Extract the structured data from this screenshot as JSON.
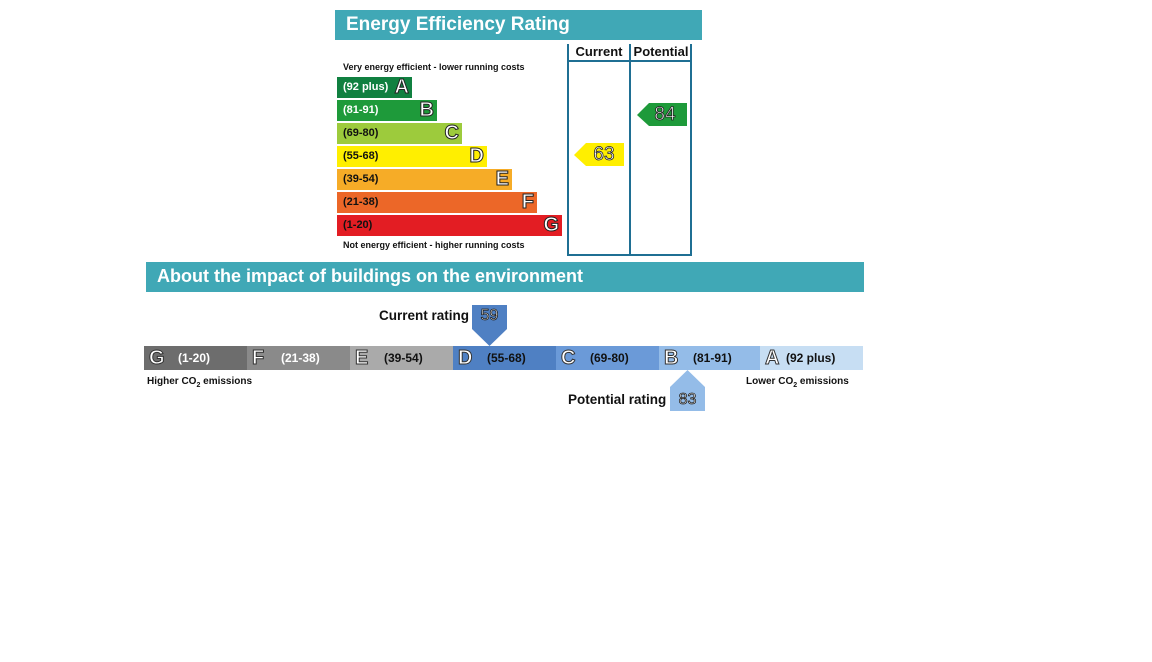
{
  "eer": {
    "title": "Energy Efficiency Rating",
    "columns": {
      "current": "Current",
      "potential": "Potential"
    },
    "top_caption": "Very energy efficient - lower running costs",
    "bottom_caption": "Not energy efficient - higher running costs",
    "bands": [
      {
        "letter": "A",
        "range": "(92 plus)",
        "color": "#108040"
      },
      {
        "letter": "B",
        "range": "(81-91)",
        "color": "#1e9a3a"
      },
      {
        "letter": "C",
        "range": "(69-80)",
        "color": "#9dcb3c"
      },
      {
        "letter": "D",
        "range": "(55-68)",
        "color": "#ffef00"
      },
      {
        "letter": "E",
        "range": "(39-54)",
        "color": "#f6ac27"
      },
      {
        "letter": "F",
        "range": "(21-38)",
        "color": "#ec6728"
      },
      {
        "letter": "G",
        "range": "(1-20)",
        "color": "#e31d23"
      }
    ],
    "current": {
      "value": "63",
      "band": "D",
      "color": "#ffef00"
    },
    "potential": {
      "value": "84",
      "band": "B",
      "color": "#1e9a3a"
    }
  },
  "env": {
    "title": "About the impact of buildings on the environment",
    "bands": [
      {
        "letter": "G",
        "range": "(1-20)",
        "color": "#6d6d6d"
      },
      {
        "letter": "F",
        "range": "(21-38)",
        "color": "#8a8a8a"
      },
      {
        "letter": "E",
        "range": "(39-54)",
        "color": "#aaaaaa"
      },
      {
        "letter": "D",
        "range": "(55-68)",
        "color": "#4f80c3"
      },
      {
        "letter": "C",
        "range": "(69-80)",
        "color": "#6b9ad8"
      },
      {
        "letter": "B",
        "range": "(81-91)",
        "color": "#94bce8"
      },
      {
        "letter": "A",
        "range": "(92 plus)",
        "color": "#c7def3"
      }
    ],
    "current_label": "Current rating",
    "current_value": "59",
    "current_color": "#4f80c3",
    "potential_label": "Potential rating",
    "potential_value": "83",
    "potential_color": "#94bce8",
    "left_caption": {
      "prefix": "Higher CO",
      "sub": "2",
      "suffix": " emissions"
    },
    "right_caption": {
      "prefix": "Lower CO",
      "sub": "2",
      "suffix": " emissions"
    }
  },
  "chart_data": [
    {
      "type": "bar",
      "title": "Energy Efficiency Rating",
      "categories": [
        "A",
        "B",
        "C",
        "D",
        "E",
        "F",
        "G"
      ],
      "ranges": [
        "(92 plus)",
        "(81-91)",
        "(69-80)",
        "(55-68)",
        "(39-54)",
        "(21-38)",
        "(1-20)"
      ],
      "series": [
        {
          "name": "Current",
          "value": 63,
          "band": "D"
        },
        {
          "name": "Potential",
          "value": 84,
          "band": "B"
        }
      ]
    },
    {
      "type": "bar",
      "title": "About the impact of buildings on the environment",
      "categories": [
        "G",
        "F",
        "E",
        "D",
        "C",
        "B",
        "A"
      ],
      "ranges": [
        "(1-20)",
        "(21-38)",
        "(39-54)",
        "(55-68)",
        "(69-80)",
        "(81-91)",
        "(92 plus)"
      ],
      "series": [
        {
          "name": "Current rating",
          "value": 59,
          "band": "D"
        },
        {
          "name": "Potential rating",
          "value": 83,
          "band": "B"
        }
      ]
    }
  ]
}
